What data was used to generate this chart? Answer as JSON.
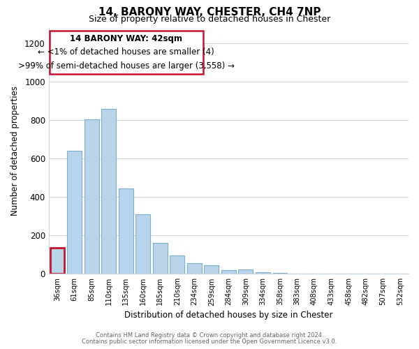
{
  "title": "14, BARONY WAY, CHESTER, CH4 7NP",
  "subtitle": "Size of property relative to detached houses in Chester",
  "xlabel": "Distribution of detached houses by size in Chester",
  "ylabel": "Number of detached properties",
  "categories": [
    "36sqm",
    "61sqm",
    "85sqm",
    "110sqm",
    "135sqm",
    "160sqm",
    "185sqm",
    "210sqm",
    "234sqm",
    "259sqm",
    "284sqm",
    "309sqm",
    "334sqm",
    "358sqm",
    "383sqm",
    "408sqm",
    "433sqm",
    "458sqm",
    "482sqm",
    "507sqm",
    "532sqm"
  ],
  "values": [
    135,
    640,
    805,
    860,
    445,
    310,
    160,
    95,
    55,
    45,
    20,
    22,
    10,
    5,
    2,
    1,
    0,
    0,
    0,
    0,
    0
  ],
  "bar_color": "#b8d4ea",
  "bar_edge_color": "#7aaece",
  "highlight_bar_color": "#c8102e",
  "highlight_index": 0,
  "annotation_title": "14 BARONY WAY: 42sqm",
  "annotation_line1": "← <1% of detached houses are smaller (4)",
  "annotation_line2": ">99% of semi-detached houses are larger (3,558) →",
  "annotation_box_color": "#c8102e",
  "ylim": [
    0,
    1280
  ],
  "yticks": [
    0,
    200,
    400,
    600,
    800,
    1000,
    1200
  ],
  "footer_line1": "Contains HM Land Registry data © Crown copyright and database right 2024.",
  "footer_line2": "Contains public sector information licensed under the Open Government Licence v3.0.",
  "bg_color": "#ffffff",
  "grid_color": "#c8d4e0"
}
